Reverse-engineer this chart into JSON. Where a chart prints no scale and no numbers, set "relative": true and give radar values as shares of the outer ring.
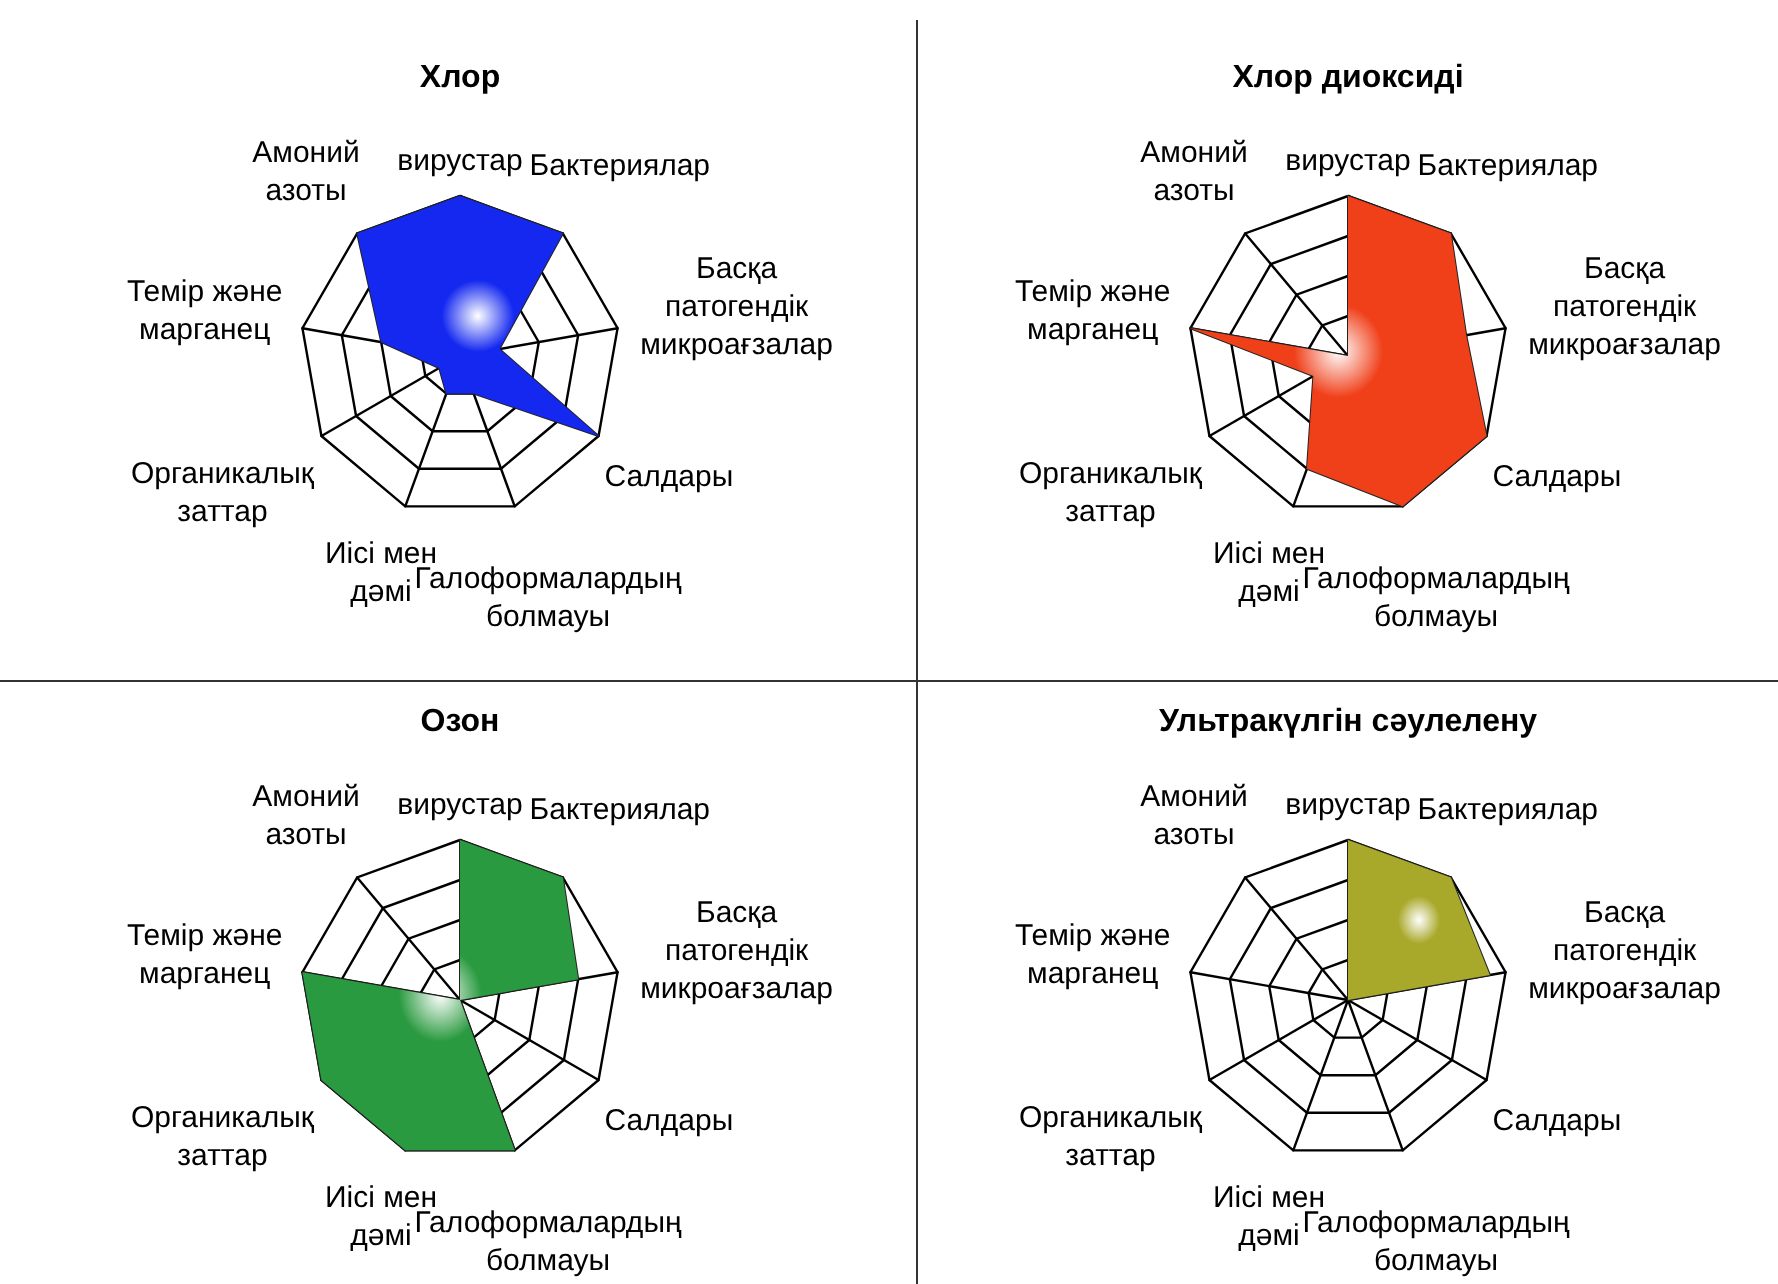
{
  "chart_data": [
    {
      "type": "radar",
      "title": "Хлор",
      "relative": true,
      "categories": [
        "вирустар",
        "Бактериялар",
        "Басқа патогендік микроағзалар",
        "Салдары",
        "Галоформалардың болмауы",
        "Иісі мен дәмі",
        "Органикалық заттар",
        "Темір және марганец",
        "Амоний азоты"
      ],
      "series": [
        {
          "color": "#1428f0",
          "values": [
            1,
            1,
            0.25,
            1,
            0.25,
            0.25,
            0.15,
            0.5,
            1
          ]
        }
      ]
    },
    {
      "type": "radar",
      "title": "Хлор диоксиді",
      "relative": true,
      "categories": [
        "вирустар",
        "Бактериялар",
        "Басқа патогендік микроағзалар",
        "Салдары",
        "Галоформалардың болмауы",
        "Иісі мен дәмі",
        "Органикалық заттар",
        "Темір және марганец",
        "Амоний азоты"
      ],
      "series": [
        {
          "color": "#f0401a",
          "values": [
            1,
            1,
            0.75,
            1,
            1,
            0.75,
            0.25,
            1,
            0
          ]
        }
      ]
    },
    {
      "type": "radar",
      "title": "Озон",
      "relative": true,
      "categories": [
        "вирустар",
        "Бактериялар",
        "Басқа патогендік микроағзалар",
        "Салдары",
        "Галоформалардың болмауы",
        "Иісі мен дәмі",
        "Органикалық заттар",
        "Темір және марганец",
        "Амоний азоты"
      ],
      "series": [
        {
          "color": "#2a9a40",
          "values": [
            1,
            1,
            0.75,
            0,
            1,
            1,
            1,
            1,
            0
          ]
        }
      ]
    },
    {
      "type": "radar",
      "title": "Ультракүлгін сәулелену",
      "relative": true,
      "categories": [
        "вирустар",
        "Бактериялар",
        "Басқа патогендік микроағзалар",
        "Салдары",
        "Галоформалардың болмауы",
        "Иісі мен дәмі",
        "Органикалық заттар",
        "Темір және марганец",
        "Амоний азоты"
      ],
      "series": [
        {
          "color": "#a8a82a",
          "values": [
            1,
            1,
            0.9,
            0,
            0,
            0,
            0,
            0,
            0
          ]
        }
      ]
    }
  ]
}
